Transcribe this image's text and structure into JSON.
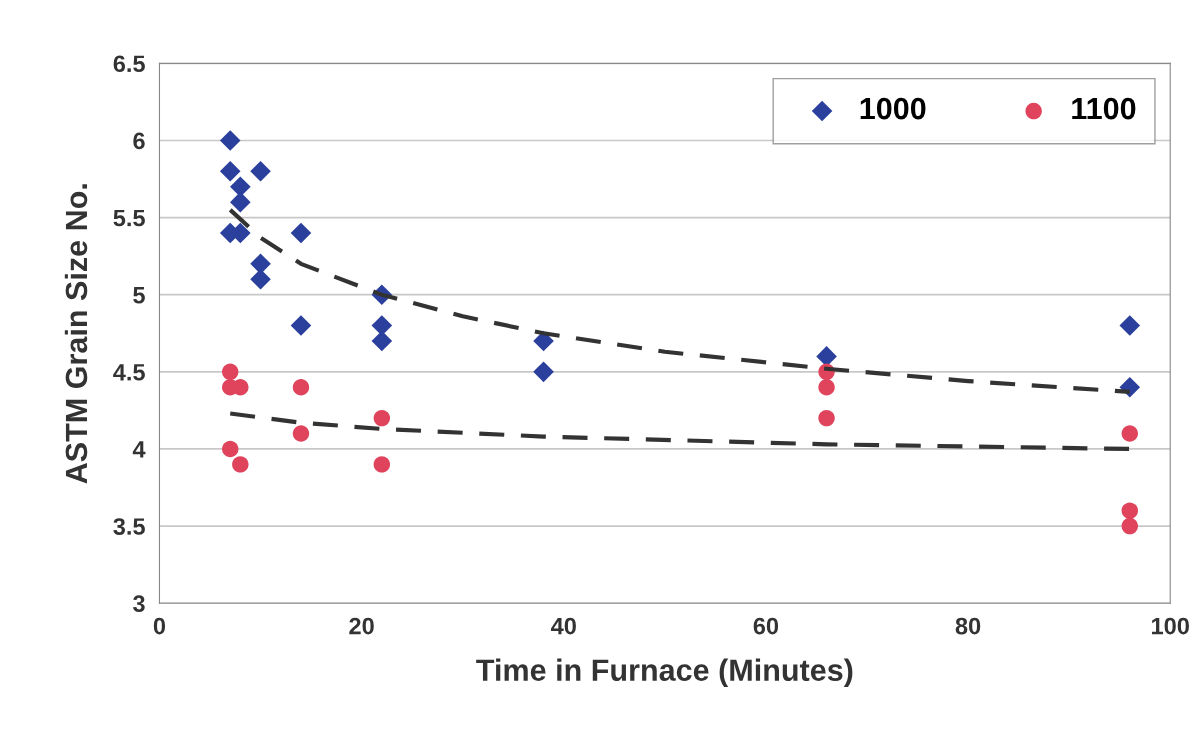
{
  "chart_data": {
    "type": "scatter",
    "xlabel": "Time in Furnace (Minutes)",
    "ylabel": "ASTM Grain Size No.",
    "xlim": [
      0,
      100
    ],
    "xticks": [
      0,
      20,
      40,
      60,
      80,
      100
    ],
    "ylim": [
      3,
      6.5
    ],
    "yticks": [
      3,
      3.5,
      4,
      4.5,
      5,
      5.5,
      6,
      6.5
    ],
    "grid": "y",
    "legend": "top right",
    "series": [
      {
        "name": "1000",
        "color": "#2b3f9c",
        "marker": "diamond",
        "x": [
          7,
          7,
          7,
          8,
          8,
          8,
          10,
          10,
          10,
          14,
          14,
          22,
          22,
          22,
          38,
          38,
          66,
          96,
          96
        ],
        "values": [
          6.0,
          5.8,
          5.4,
          5.7,
          5.6,
          5.4,
          5.8,
          5.2,
          5.1,
          5.4,
          4.8,
          5.0,
          4.8,
          4.7,
          4.7,
          4.5,
          4.6,
          4.8,
          4.4
        ]
      },
      {
        "name": "1100",
        "color": "#e0435c",
        "marker": "circle",
        "x": [
          7,
          7,
          7,
          8,
          8,
          14,
          14,
          22,
          22,
          66,
          66,
          66,
          96,
          96,
          96
        ],
        "values": [
          4.5,
          4.4,
          4.0,
          4.4,
          3.9,
          4.4,
          4.1,
          4.2,
          3.9,
          4.5,
          4.4,
          4.2,
          4.1,
          3.6,
          3.5
        ]
      },
      {
        "type": "line",
        "color": "#333333",
        "line_style": "dashed",
        "marker": "none",
        "x": [
          7,
          10,
          14,
          22,
          30,
          38,
          50,
          66,
          80,
          96
        ],
        "values": [
          5.55,
          5.37,
          5.2,
          5.0,
          4.86,
          4.75,
          4.63,
          4.52,
          4.44,
          4.37
        ]
      },
      {
        "type": "line",
        "color": "#333333",
        "line_style": "dashed",
        "marker": "none",
        "x": [
          7,
          14,
          22,
          38,
          66,
          96
        ],
        "values": [
          4.23,
          4.17,
          4.13,
          4.08,
          4.03,
          4.0
        ]
      }
    ]
  }
}
